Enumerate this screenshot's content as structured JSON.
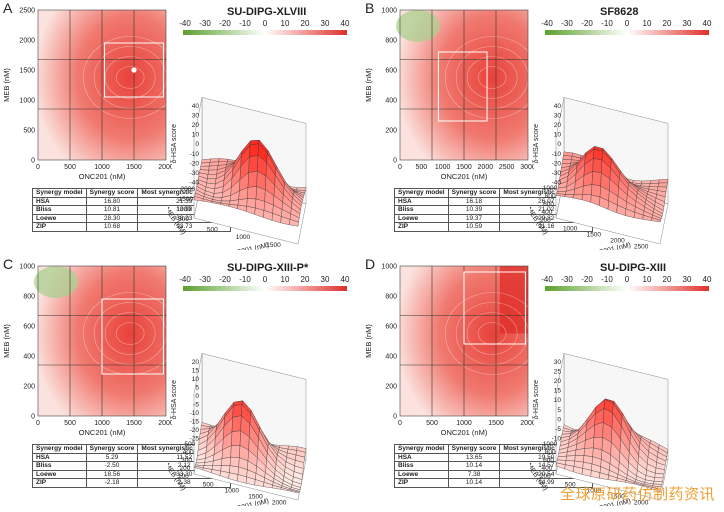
{
  "colorbar": {
    "ticks": [
      "-40",
      "-30",
      "-20",
      "-10",
      "0",
      "10",
      "20",
      "30",
      "40"
    ],
    "low_color": "#5aa02c",
    "mid_color": "#ffffff",
    "high_color": "#e0302a"
  },
  "table_headers": [
    "Synergy model",
    "Synergy score",
    "Most synergistic area score"
  ],
  "watermark": "全球原研药仿制药资讯",
  "panels": [
    {
      "letter": "A",
      "title": "SU-DIPG-XLVIII",
      "heatmap": {
        "xlabel": "ONC201 (nM)",
        "ylabel": "MEB (nM)",
        "xticks": [
          "0",
          "500",
          "1000",
          "1500",
          "2000"
        ],
        "yticks": [
          "0",
          "500",
          "1000",
          "1500",
          "2000",
          "2500"
        ]
      },
      "surface": {
        "zlabel": "δ-HSA score",
        "zticks": [
          "40",
          "30",
          "20",
          "10",
          "0",
          "-10",
          "-20",
          "-30",
          "-40"
        ],
        "ylabel": "MEB (nM)",
        "xlabel": "ONC201 (nM)",
        "yticks": [
          "2000",
          "1500",
          "1000",
          "500"
        ],
        "xticks": [
          "500",
          "1000",
          "1500"
        ]
      },
      "table": [
        [
          "HSA",
          "16.80",
          "21.39"
        ],
        [
          "Bliss",
          "10.81",
          "13.98"
        ],
        [
          "Loewe",
          "28.30",
          "38.23"
        ],
        [
          "ZIP",
          "10.68",
          "13.73"
        ]
      ]
    },
    {
      "letter": "B",
      "title": "SF8628",
      "heatmap": {
        "xlabel": "ONC201 (nM)",
        "ylabel": "MEB (nM)",
        "xticks": [
          "0",
          "500",
          "1000",
          "1500",
          "2000",
          "2500",
          "3000"
        ],
        "yticks": [
          "0",
          "200",
          "400",
          "600",
          "800",
          "1000"
        ]
      },
      "surface": {
        "zlabel": "δ-HSA score",
        "zticks": [
          "40",
          "30",
          "20",
          "10",
          "0",
          "-10",
          "-20",
          "-30",
          "-40"
        ],
        "ylabel": "MEB (nM)",
        "xlabel": "ONC201 (nM)",
        "yticks": [
          "1000",
          "800",
          "600",
          "400",
          "200"
        ],
        "xticks": [
          "1000",
          "1500",
          "2000",
          "2500"
        ]
      },
      "table": [
        [
          "HSA",
          "16.18",
          "26.07"
        ],
        [
          "Bliss",
          "10.39",
          "21.02"
        ],
        [
          "Loewe",
          "19.37",
          "29.82"
        ],
        [
          "ZIP",
          "10.59",
          "21.16"
        ]
      ]
    },
    {
      "letter": "C",
      "title": "SU-DIPG-XIII-P*",
      "heatmap": {
        "xlabel": "ONC201 (nM)",
        "ylabel": "MEB (nM)",
        "xticks": [
          "0",
          "500",
          "1000",
          "1500",
          "2000"
        ],
        "yticks": [
          "0",
          "200",
          "400",
          "600",
          "800",
          "1000"
        ]
      },
      "surface": {
        "zlabel": "δ-HSA score",
        "zticks": [
          "20",
          "15",
          "10",
          "5",
          "0",
          "-5",
          "-10",
          "-15",
          "-20",
          "-25"
        ],
        "ylabel": "MEB (nM)",
        "xlabel": "ONC201 (nM)",
        "yticks": [
          "500",
          "400",
          "300",
          "200",
          "100"
        ],
        "xticks": [
          "500",
          "1000",
          "1500",
          "2000"
        ]
      },
      "table": [
        [
          "HSA",
          "5.29",
          "11.52"
        ],
        [
          "Bliss",
          "-2.50",
          "2.12"
        ],
        [
          "Loewe",
          "18.56",
          "33.30"
        ],
        [
          "ZIP",
          "-2.18",
          "2.38"
        ]
      ]
    },
    {
      "letter": "D",
      "title": "SU-DIPG-XIII",
      "heatmap": {
        "xlabel": "ONC201 (nM)",
        "ylabel": "MEB (nM)",
        "xticks": [
          "0",
          "500",
          "1000",
          "1500",
          "2000"
        ],
        "yticks": [
          "0",
          "200",
          "400",
          "600",
          "800",
          "1000"
        ]
      },
      "surface": {
        "zlabel": "δ-HSA score",
        "zticks": [
          "30",
          "25",
          "20",
          "15",
          "10",
          "5",
          "0",
          "-5",
          "-10"
        ],
        "ylabel": "MEB (nM)",
        "xlabel": "ONC201 (nM)",
        "yticks": [
          "1000",
          "800",
          "600",
          "400",
          "200"
        ],
        "xticks": [
          "500",
          "1000",
          "1500",
          "2000"
        ]
      },
      "table": [
        [
          "HSA",
          "13.65",
          "19.50"
        ],
        [
          "Bliss",
          "10.14",
          "14.57"
        ],
        [
          "Loewe",
          "7.38",
          "20.54"
        ],
        [
          "ZIP",
          "10.14",
          "14.99"
        ]
      ]
    }
  ],
  "chart_data": [
    {
      "type": "heatmap",
      "title": "SU-DIPG-XLVIII",
      "xlabel": "ONC201 (nM)",
      "ylabel": "MEB (nM)",
      "xlim": [
        0,
        2000
      ],
      "ylim": [
        0,
        2500
      ],
      "zlabel": "δ-HSA score",
      "zlim": [
        -40,
        40
      ],
      "synergy_scores": {
        "HSA": 16.8,
        "Bliss": 10.81,
        "Loewe": 28.3,
        "ZIP": 10.68
      },
      "most_synergistic_area_scores": {
        "HSA": 21.39,
        "Bliss": 13.98,
        "Loewe": 38.23,
        "ZIP": 13.73
      }
    },
    {
      "type": "heatmap",
      "title": "SF8628",
      "xlabel": "ONC201 (nM)",
      "ylabel": "MEB (nM)",
      "xlim": [
        0,
        3000
      ],
      "ylim": [
        0,
        1000
      ],
      "zlabel": "δ-HSA score",
      "zlim": [
        -40,
        40
      ],
      "synergy_scores": {
        "HSA": 16.18,
        "Bliss": 10.39,
        "Loewe": 19.37,
        "ZIP": 10.59
      },
      "most_synergistic_area_scores": {
        "HSA": 26.07,
        "Bliss": 21.02,
        "Loewe": 29.82,
        "ZIP": 21.16
      }
    },
    {
      "type": "heatmap",
      "title": "SU-DIPG-XIII-P*",
      "xlabel": "ONC201 (nM)",
      "ylabel": "MEB (nM)",
      "xlim": [
        0,
        2000
      ],
      "ylim": [
        0,
        1000
      ],
      "zlabel": "δ-HSA score",
      "zlim": [
        -25,
        20
      ],
      "synergy_scores": {
        "HSA": 5.29,
        "Bliss": -2.5,
        "Loewe": 18.56,
        "ZIP": -2.18
      },
      "most_synergistic_area_scores": {
        "HSA": 11.52,
        "Bliss": 2.12,
        "Loewe": 33.3,
        "ZIP": 2.38
      }
    },
    {
      "type": "heatmap",
      "title": "SU-DIPG-XIII",
      "xlabel": "ONC201 (nM)",
      "ylabel": "MEB (nM)",
      "xlim": [
        0,
        2000
      ],
      "ylim": [
        0,
        1000
      ],
      "zlabel": "δ-HSA score",
      "zlim": [
        -10,
        30
      ],
      "synergy_scores": {
        "HSA": 13.65,
        "Bliss": 10.14,
        "Loewe": 7.38,
        "ZIP": 10.14
      },
      "most_synergistic_area_scores": {
        "HSA": 19.5,
        "Bliss": 14.57,
        "Loewe": 20.54,
        "ZIP": 14.99
      }
    }
  ]
}
